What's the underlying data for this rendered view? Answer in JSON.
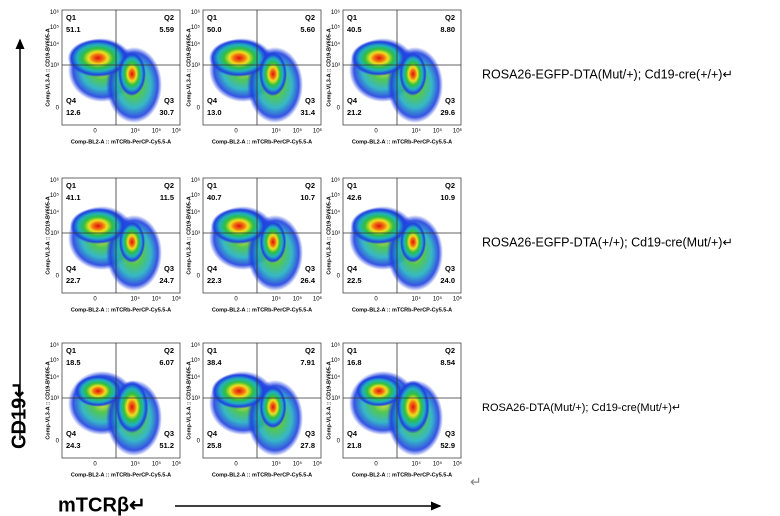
{
  "axis_labels": {
    "y": "CD19↵",
    "x": "mTCRβ↵"
  },
  "plot_axes": {
    "y_label": "Comp-VL3-A :: CD19-BV605-A",
    "x_label": "Comp-BL2-A :: mTCRb-PerCP-Cy5.5-A",
    "x_ticks": [
      "0",
      "10⁴",
      "10⁵",
      "10⁶"
    ],
    "y_ticks": [
      "0",
      "10³",
      "10⁴",
      "10⁵",
      "10⁶"
    ],
    "quadrants": [
      "Q1",
      "Q2",
      "Q3",
      "Q4"
    ]
  },
  "rows": [
    {
      "label": "ROSA26-EGFP-DTA(Mut/+); Cd19-cre(+/+)↵",
      "plots": [
        {
          "q1": "51.1",
          "q2": "5.59",
          "q3": "30.7",
          "q4": "12.6"
        },
        {
          "q1": "50.0",
          "q2": "5.60",
          "q3": "31.4",
          "q4": "13.0"
        },
        {
          "q1": "40.5",
          "q2": "8.80",
          "q3": "29.6",
          "q4": "21.2"
        }
      ]
    },
    {
      "label": "ROSA26-EGFP-DTA(+/+); Cd19-cre(Mut/+)↵",
      "plots": [
        {
          "q1": "41.1",
          "q2": "11.5",
          "q3": "24.7",
          "q4": "22.7"
        },
        {
          "q1": "40.7",
          "q2": "10.7",
          "q3": "26.4",
          "q4": "22.3"
        },
        {
          "q1": "42.6",
          "q2": "10.9",
          "q3": "24.0",
          "q4": "22.5"
        }
      ]
    },
    {
      "label": "ROSA26-DTA(Mut/+); Cd19-cre(Mut/+)↵",
      "plots": [
        {
          "q1": "18.5",
          "q2": "6.07",
          "q3": "51.2",
          "q4": "24.3"
        },
        {
          "q1": "38.4",
          "q2": "7.91",
          "q3": "27.8",
          "q4": "25.8"
        },
        {
          "q1": "16.8",
          "q2": "8.54",
          "q3": "52.9",
          "q4": "21.8"
        }
      ]
    }
  ],
  "end_mark": "↵"
}
